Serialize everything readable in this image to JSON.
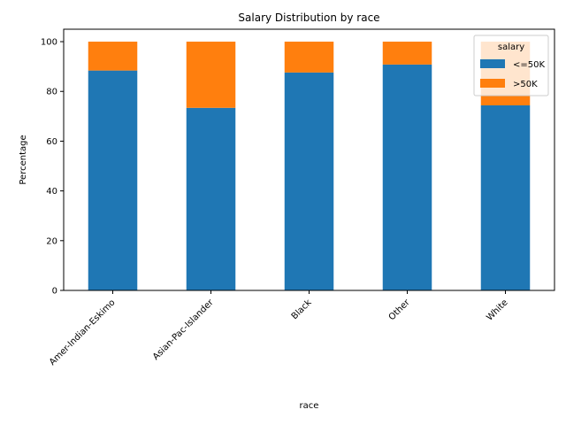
{
  "chart_data": {
    "type": "bar",
    "stacked": true,
    "title": "Salary Distribution by race",
    "xlabel": "race",
    "ylabel": "Percentage",
    "ylim": [
      0,
      105
    ],
    "yticks": [
      0,
      20,
      40,
      60,
      80,
      100
    ],
    "categories": [
      "Amer-Indian-Eskimo",
      "Asian-Pac-Islander",
      "Black",
      "Other",
      "White"
    ],
    "series": [
      {
        "name": "<=50K",
        "color": "#1f77b4",
        "values": [
          88.4,
          73.4,
          87.6,
          90.8,
          74.4
        ]
      },
      {
        "name": ">50K",
        "color": "#ff7f0e",
        "values": [
          11.6,
          26.6,
          12.4,
          9.2,
          25.6
        ]
      }
    ],
    "legend": {
      "title": "salary",
      "position": "top-right"
    }
  }
}
